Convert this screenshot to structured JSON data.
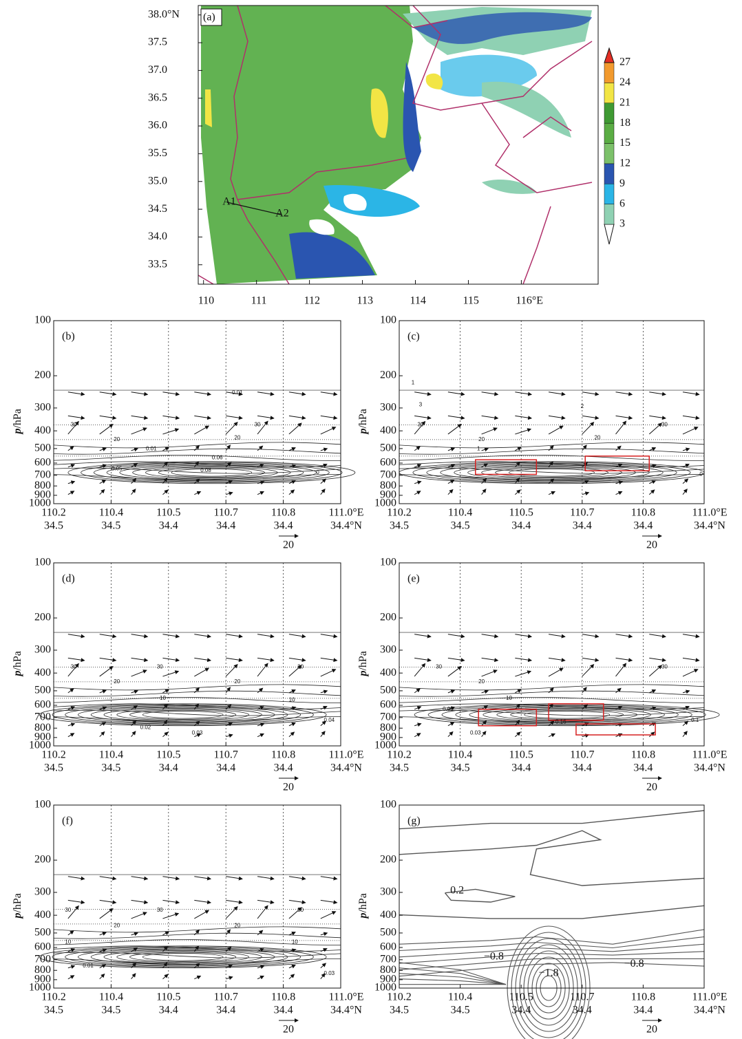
{
  "chart_data": [
    {
      "type": "map",
      "label": "(a)",
      "xlim": [
        109.9,
        117.45
      ],
      "xticks": [
        110,
        111,
        112,
        113,
        114,
        115,
        {
          "value": 116,
          "label": "116°E"
        }
      ],
      "ylim": [
        33.15,
        38.17
      ],
      "yticks": [
        33.5,
        {
          "value": 34,
          "label": "34.0"
        },
        34.5,
        {
          "value": 35,
          "label": "35.0"
        },
        35.5,
        {
          "value": 36,
          "label": "36.0"
        },
        36.5,
        {
          "value": 37,
          "label": "37.0"
        },
        37.5,
        {
          "value": 38,
          "label": "38.0°N"
        }
      ],
      "colorbar": {
        "levels": [
          3,
          6,
          9,
          12,
          15,
          18,
          21,
          24,
          27
        ],
        "colors": [
          "#ffffff",
          "#8fd1b3",
          "#2bb5e6",
          "#2a55b0",
          "#7cc16a",
          "#5aad44",
          "#3f9a33",
          "#f2e545",
          "#f29a2e",
          "#e52f25"
        ]
      },
      "annotations": [
        "A1",
        "A2"
      ]
    },
    {
      "type": "cross-section",
      "label": "(b)",
      "ylabel_var": "p",
      "ylabel_unit": "/hPa",
      "log_y": true,
      "grid_x": true,
      "ylim": [
        1000,
        100
      ],
      "yticks": [
        100,
        200,
        300,
        400,
        500,
        600,
        700,
        800,
        900,
        1000
      ],
      "categories": [
        "110.2",
        "110.4",
        "110.5",
        "110.7",
        "110.8",
        "111.0°E"
      ],
      "categories2": [
        "34.5",
        "34.5",
        "34.4",
        "34.4",
        "34.4",
        "34.4°N"
      ],
      "reference_vector": 20,
      "annotations": [
        "0.01",
        "30",
        "30",
        "20",
        "20",
        "0.01",
        "0.06",
        "0.05",
        "0.08",
        "0"
      ]
    },
    {
      "type": "cross-section",
      "label": "(c)",
      "ylabel_var": "p",
      "ylabel_unit": "/hPa",
      "log_y": true,
      "grid_x": true,
      "ylim": [
        1000,
        100
      ],
      "yticks": [
        100,
        200,
        300,
        400,
        500,
        600,
        700,
        800,
        900,
        1000
      ],
      "categories": [
        "110.2",
        "110.4",
        "110.5",
        "110.7",
        "110.8",
        "111.0°E"
      ],
      "categories2": [
        "34.5",
        "34.5",
        "34.4",
        "34.4",
        "34.4",
        "34.4°N"
      ],
      "reference_vector": 20,
      "annotations": [
        "1",
        "3",
        "2",
        "30",
        "30",
        "20",
        "20",
        "1",
        "0"
      ]
    },
    {
      "type": "cross-section",
      "label": "(d)",
      "ylabel_var": "p",
      "ylabel_unit": "/hPa",
      "log_y": true,
      "grid_x": true,
      "ylim": [
        1000,
        100
      ],
      "yticks": [
        100,
        200,
        300,
        400,
        500,
        600,
        700,
        800,
        900,
        1000
      ],
      "categories": [
        "110.2",
        "110.4",
        "110.5",
        "110.7",
        "110.8",
        "111.0°E"
      ],
      "categories2": [
        "34.5",
        "34.5",
        "34.4",
        "34.4",
        "34.4",
        "34.4°N"
      ],
      "reference_vector": 20,
      "annotations": [
        "30",
        "30",
        "30",
        "20",
        "20",
        "10",
        "10",
        "0.02",
        "0.03",
        "0.04"
      ]
    },
    {
      "type": "cross-section",
      "label": "(e)",
      "ylabel_var": "p",
      "ylabel_unit": "/hPa",
      "log_y": true,
      "grid_x": true,
      "ylim": [
        1000,
        100
      ],
      "yticks": [
        100,
        200,
        300,
        400,
        500,
        600,
        700,
        800,
        900,
        1000
      ],
      "categories": [
        "110.2",
        "110.4",
        "110.5",
        "110.7",
        "110.8",
        "111.0°E"
      ],
      "categories2": [
        "34.5",
        "34.5",
        "34.4",
        "34.4",
        "34.4",
        "34.4°N"
      ],
      "reference_vector": 20,
      "annotations": [
        "30",
        "30",
        "20",
        "10",
        "0.03",
        "0.16",
        "0.03",
        "0.1"
      ]
    },
    {
      "type": "cross-section",
      "label": "(f)",
      "ylabel_var": "p",
      "ylabel_unit": "/hPa",
      "log_y": true,
      "grid_x": true,
      "ylim": [
        1000,
        100
      ],
      "yticks": [
        100,
        200,
        300,
        400,
        500,
        600,
        700,
        800,
        900,
        1000
      ],
      "categories": [
        "110.2",
        "110.4",
        "110.5",
        "110.7",
        "110.8",
        "111.0°E"
      ],
      "categories2": [
        "34.5",
        "34.5",
        "34.4",
        "34.4",
        "34.4",
        "34.4°N"
      ],
      "reference_vector": 20,
      "annotations": [
        "30",
        "30",
        "30",
        "20",
        "20",
        "10",
        "10",
        "0.01",
        "0.03"
      ]
    },
    {
      "type": "contour-section",
      "label": "(g)",
      "ylabel_var": "p",
      "ylabel_unit": "/hPa",
      "log_y": true,
      "grid_x": false,
      "ylim": [
        1000,
        100
      ],
      "yticks": [
        100,
        200,
        300,
        400,
        500,
        600,
        700,
        800,
        900,
        1000
      ],
      "categories": [
        "110.2",
        "110.4",
        "110.5",
        "110.7",
        "110.8",
        "111.0°E"
      ],
      "categories2": [
        "34.5",
        "34.5",
        "34.4",
        "34.4",
        "34.4",
        "34.4°N"
      ],
      "reference_vector": 20,
      "annotations": [
        "0.2",
        "−0.8",
        "−1.8",
        "−0.8"
      ]
    }
  ]
}
